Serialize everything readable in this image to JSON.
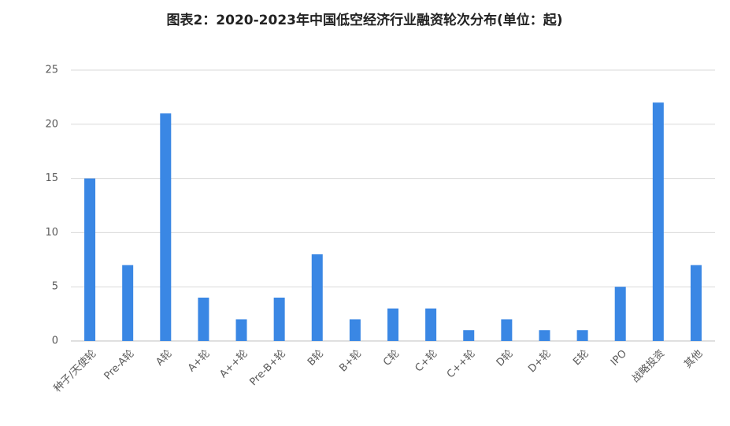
{
  "chart_data": {
    "type": "bar",
    "title": "图表2：2020-2023年中国低空经济行业融资轮次分布(单位：起)",
    "categories": [
      "种子/天使轮",
      "Pre-A轮",
      "A轮",
      "A+轮",
      "A++轮",
      "Pre-B+轮",
      "B轮",
      "B+轮",
      "C轮",
      "C+轮",
      "C++轮",
      "D轮",
      "D+轮",
      "E轮",
      "IPO",
      "战略投资",
      "其他"
    ],
    "values": [
      15,
      7,
      21,
      4,
      2,
      4,
      8,
      2,
      3,
      3,
      1,
      2,
      1,
      1,
      5,
      22,
      7
    ],
    "color": "#3a87e4",
    "ylim": [
      0,
      25
    ],
    "yticks": [
      0,
      5,
      10,
      15,
      20,
      25
    ],
    "grid": true
  }
}
